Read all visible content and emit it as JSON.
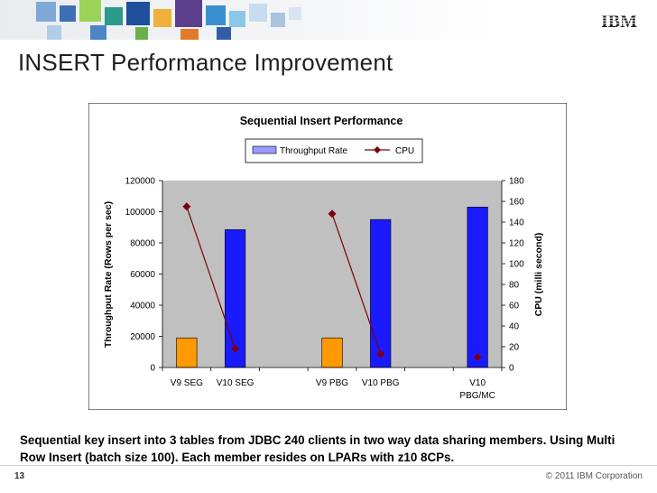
{
  "slide": {
    "title": "INSERT Performance Improvement",
    "caption": "Sequential key insert into 3 tables from JDBC 240 clients in two way data sharing members. Using Multi Row Insert (batch size 100). Each member resides on LPARs with z10 8CPs.",
    "page_number": "13",
    "copyright": "© 2011 IBM Corporation",
    "logo_text": "IBM"
  },
  "colors": {
    "orange": "#ff9900",
    "blue": "#1a1aff",
    "cpu_line": "#7a0010",
    "plot_bg": "#c0c0c0"
  },
  "chart_data": {
    "type": "bar",
    "title": "Sequential Insert Performance",
    "categories": [
      "V9  SEG",
      "V10  SEG",
      "",
      "V9 PBG",
      "V10 PBG",
      "",
      "V10 PBG/MC"
    ],
    "category_lines": [
      [
        "V9  SEG"
      ],
      [
        "V10  SEG"
      ],
      [],
      [
        "V9 PBG"
      ],
      [
        "V10 PBG"
      ],
      [],
      [
        "V10",
        "PBG/MC"
      ]
    ],
    "series": [
      {
        "name": "Throughput Rate",
        "axis": "left",
        "kind": "bar",
        "values": [
          19000,
          88500,
          null,
          19000,
          95000,
          null,
          103000
        ],
        "colors": [
          "#ff9900",
          "#1a1aff",
          null,
          "#ff9900",
          "#1a1aff",
          null,
          "#1a1aff"
        ]
      },
      {
        "name": "CPU",
        "axis": "right",
        "kind": "line",
        "values": [
          155,
          18,
          null,
          148,
          13,
          null,
          10
        ]
      }
    ],
    "ylabel": "Throughput Rate (Rows per sec)",
    "y2label": "CPU (milli second)",
    "ylim": [
      0,
      120000
    ],
    "y2lim": [
      0,
      180
    ],
    "yticks": [
      0,
      20000,
      40000,
      60000,
      80000,
      100000,
      120000
    ],
    "y2ticks": [
      0,
      20,
      40,
      60,
      80,
      100,
      120,
      140,
      160,
      180
    ],
    "legend_position": "top-center",
    "grid": false
  }
}
